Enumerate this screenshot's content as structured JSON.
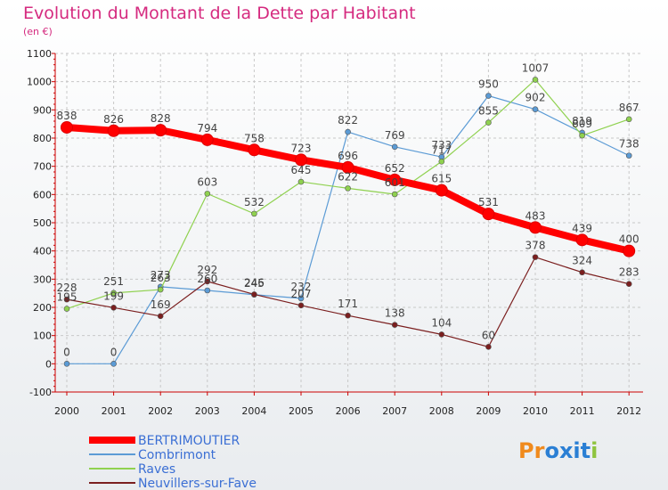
{
  "title": "Evolution du Montant de la Dette par Habitant",
  "subtitle": "(en €)",
  "logo_text": "Proxiti",
  "colors": {
    "title": "#d52a7f",
    "axis": "#cc0000",
    "grid": "#c8c8c8",
    "background_top": "#ffffff",
    "background_bottom": "#e9ecef"
  },
  "chart_data": {
    "type": "line",
    "title": "Evolution du Montant de la Dette par Habitant",
    "subtitle": "(en €)",
    "x": [
      "2000",
      "2001",
      "2002",
      "2003",
      "2004",
      "2005",
      "2006",
      "2007",
      "2008",
      "2009",
      "2010",
      "2011",
      "2012"
    ],
    "ylim": [
      -100,
      1100
    ],
    "yticks": [
      -100,
      0,
      100,
      200,
      300,
      400,
      500,
      600,
      700,
      800,
      900,
      1000,
      1100
    ],
    "grid": true,
    "legend_position": "bottom-left",
    "series": [
      {
        "name": "BERTRIMOUTIER",
        "color": "#ff0000",
        "values": [
          838,
          826,
          828,
          794,
          758,
          723,
          696,
          652,
          615,
          531,
          483,
          439,
          400
        ]
      },
      {
        "name": "Combrimont",
        "color": "#5b9bd5",
        "values": [
          0,
          0,
          273,
          260,
          245,
          232,
          822,
          769,
          733,
          950,
          902,
          819,
          738
        ]
      },
      {
        "name": "Raves",
        "color": "#8fd14f",
        "values": [
          195,
          251,
          263,
          603,
          532,
          645,
          622,
          601,
          717,
          855,
          1007,
          809,
          867
        ]
      },
      {
        "name": "Neuvillers-sur-Fave",
        "color": "#7b1f1f",
        "values": [
          228,
          199,
          169,
          292,
          246,
          207,
          171,
          138,
          104,
          60,
          378,
          324,
          283
        ]
      }
    ]
  }
}
